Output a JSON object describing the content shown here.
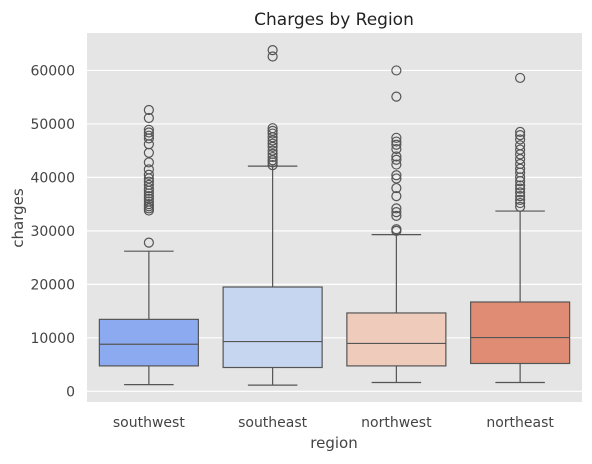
{
  "chart_data": {
    "type": "box",
    "title": "Charges by Region",
    "xlabel": "region",
    "ylabel": "charges",
    "ylim": [
      -2000,
      67000
    ],
    "yticks": [
      0,
      10000,
      20000,
      30000,
      40000,
      50000,
      60000
    ],
    "grid": true,
    "categories": [
      "southwest",
      "southeast",
      "northwest",
      "northeast"
    ],
    "colors": [
      "#8caaf0",
      "#c6d6f0",
      "#eecbbb",
      "#e08c74"
    ],
    "boxes": [
      {
        "category": "southwest",
        "whisker_low": 1250,
        "q1": 4750,
        "median": 8800,
        "q3": 13450,
        "whisker_high": 26200,
        "outliers": [
          27800,
          33800,
          34200,
          34600,
          35000,
          35500,
          36000,
          36500,
          37000,
          37500,
          38000,
          38600,
          39200,
          39800,
          40500,
          41500,
          42800,
          44600,
          46200,
          47300,
          47800,
          48400,
          48900,
          51100,
          52600
        ]
      },
      {
        "category": "southeast",
        "whisker_low": 1150,
        "q1": 4450,
        "median": 9300,
        "q3": 19500,
        "whisker_high": 42100,
        "outliers": [
          42300,
          42800,
          43200,
          43800,
          44400,
          45000,
          45700,
          46300,
          46900,
          47500,
          48200,
          48700,
          49200,
          62600,
          63800
        ]
      },
      {
        "category": "northwest",
        "whisker_low": 1650,
        "q1": 4750,
        "median": 8950,
        "q3": 14650,
        "whisker_high": 29300,
        "outliers": [
          30000,
          30300,
          32800,
          33500,
          34200,
          36500,
          38000,
          39800,
          40400,
          42400,
          43300,
          43900,
          45300,
          46100,
          46700,
          47400,
          55100,
          60000
        ]
      },
      {
        "category": "northeast",
        "whisker_low": 1650,
        "q1": 5200,
        "median": 10050,
        "q3": 16700,
        "whisker_high": 33700,
        "outliers": [
          34500,
          35200,
          35800,
          36500,
          37200,
          37900,
          38500,
          39300,
          40000,
          40900,
          41600,
          42500,
          43400,
          44300,
          45200,
          46000,
          47100,
          47900,
          48500,
          58600
        ]
      }
    ]
  }
}
